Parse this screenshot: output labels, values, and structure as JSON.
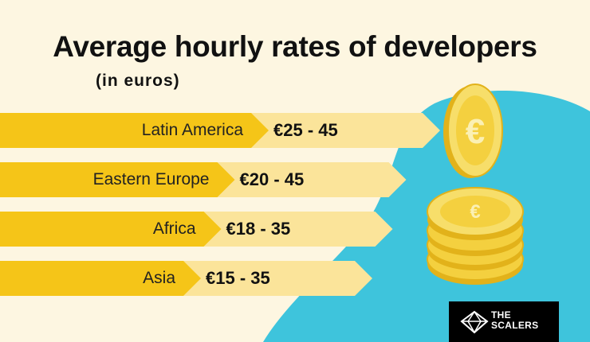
{
  "title": "Average hourly rates of developers",
  "subtitle": "(in euros)",
  "logo_text_line1": "THE",
  "logo_text_line2": "SCALERS",
  "colors": {
    "background": "#fdf6e1",
    "bar_dark": "#f5c518",
    "bar_light": "#fbe49a",
    "blob": "#3ec4dc",
    "coin": "#f4d03f",
    "coin_edge": "#e2b21a"
  },
  "chart_data": {
    "type": "bar",
    "title": "Average hourly rates of developers",
    "subtitle": "(in euros)",
    "unit": "€ per hour",
    "categories": [
      "Latin America",
      "Eastern Europe",
      "Africa",
      "Asia"
    ],
    "series": [
      {
        "values": [
          [
            25,
            45
          ],
          [
            20,
            45
          ],
          [
            18,
            35
          ],
          [
            15,
            35
          ]
        ]
      }
    ],
    "value_labels": [
      "€25 - 45",
      "€20 - 45",
      "€18 - 35",
      "€15 - 35"
    ]
  }
}
